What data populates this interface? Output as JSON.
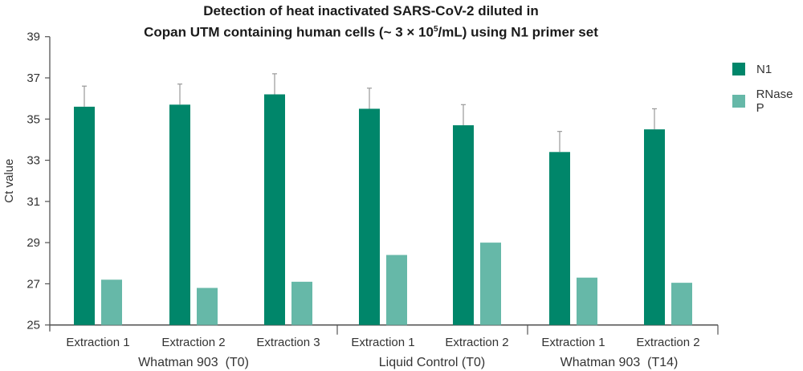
{
  "title_line1": "Detection of heat inactivated SARS-CoV-2 diluted in",
  "title_line2_pre": "Copan UTM containing human cells (~ 3 × 10",
  "title_line2_sup": "5",
  "title_line2_post": "/mL) using N1 primer set",
  "colors": {
    "n1": "#00866a",
    "rnase": "#66b8a8",
    "axis": "#555555",
    "error": "#999999"
  },
  "legend": [
    {
      "label": "N1",
      "color": "#00866a"
    },
    {
      "label": "RNase P",
      "color": "#66b8a8"
    }
  ],
  "chart_data": {
    "type": "bar",
    "title": "Detection of heat inactivated SARS-CoV-2 diluted in Copan UTM containing human cells (~ 3 × 10^5/mL) using N1 primer set",
    "xlabel": "",
    "ylabel": "Ct value",
    "ylim": [
      25,
      39
    ],
    "yticks": [
      25,
      27,
      29,
      31,
      33,
      35,
      37,
      39
    ],
    "grid": false,
    "legend_position": "right",
    "groups": [
      {
        "label": "Whatman 903  (T0)",
        "categories": [
          "Extraction 1",
          "Extraction 2",
          "Extraction 3"
        ]
      },
      {
        "label": "Liquid Control (T0)",
        "categories": [
          "Extraction 1",
          "Extraction 2"
        ]
      },
      {
        "label": "Whatman 903  (T14)",
        "categories": [
          "Extraction 1",
          "Extraction 2"
        ]
      }
    ],
    "categories": [
      "Extraction 1",
      "Extraction 2",
      "Extraction 3",
      "Extraction 1",
      "Extraction 2",
      "Extraction 1",
      "Extraction 2"
    ],
    "series": [
      {
        "name": "N1",
        "values": [
          35.6,
          35.7,
          36.2,
          35.5,
          34.7,
          33.4,
          34.5
        ],
        "error_upper": [
          1.0,
          1.0,
          1.0,
          1.0,
          1.0,
          1.0,
          1.0
        ]
      },
      {
        "name": "RNase P",
        "values": [
          27.2,
          26.8,
          27.1,
          28.4,
          29.0,
          27.3,
          27.05
        ]
      }
    ]
  }
}
